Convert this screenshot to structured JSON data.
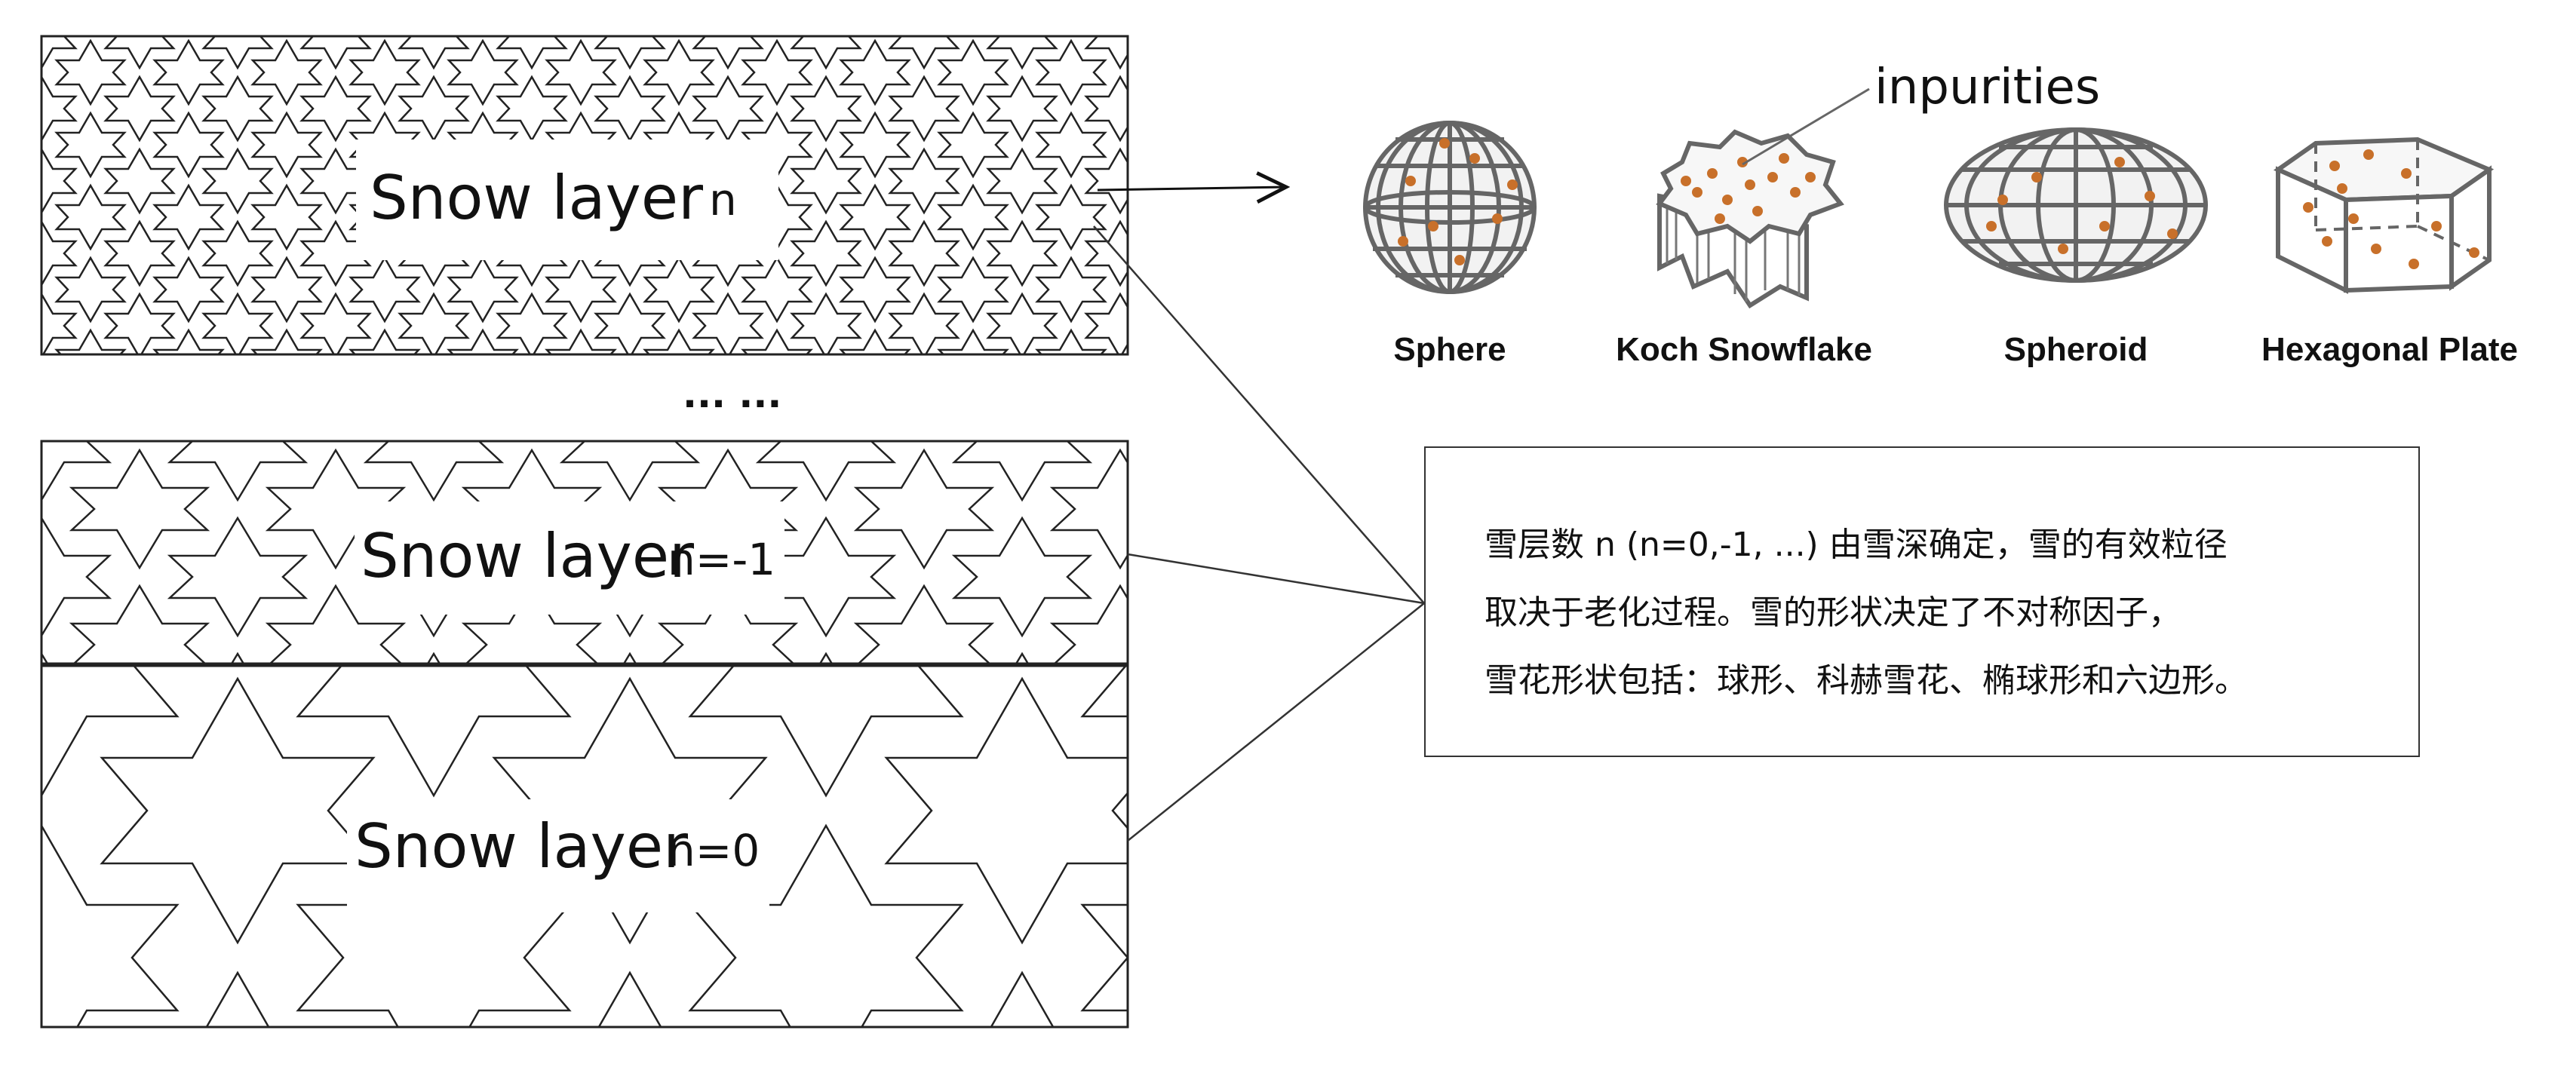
{
  "layers": [
    {
      "label": "Snow layer",
      "index": "n"
    },
    {
      "label": "Snow layer",
      "index": "n=-1"
    },
    {
      "label": "Snow layer",
      "index": "n=0"
    }
  ],
  "ellipsis": "... ...",
  "impurities_label": "inpurities",
  "shapes": [
    {
      "name": "Sphere"
    },
    {
      "name": "Koch Snowflake"
    },
    {
      "name": "Spheroid"
    },
    {
      "name": "Hexagonal Plate"
    }
  ],
  "note_lines": [
    "雪层数 n (n=0,-1, ...) 由雪深确定，雪的有效粒径",
    "取决于老化过程。雪的形状决定了不对称因子，",
    "雪花形状包括：球形、科赫雪花、椭球形和六边形。"
  ],
  "colors": {
    "line": "#222222",
    "frame": "#666666",
    "impurity": "#c8702a",
    "fill": "#f2f2f2"
  }
}
